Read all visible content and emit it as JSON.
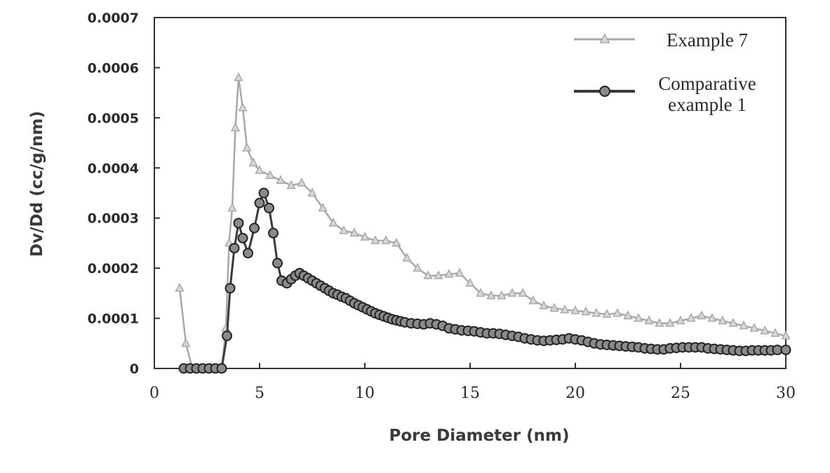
{
  "chart_data": {
    "type": "line",
    "xlabel": "Pore Diameter (nm)",
    "ylabel": "Dv/Dd (cc/g/nm)",
    "xlim": [
      0,
      30
    ],
    "ylim": [
      0,
      0.0007
    ],
    "x_ticks": [
      "0",
      "5",
      "10",
      "15",
      "20",
      "25",
      "30"
    ],
    "y_ticks": [
      "0",
      "0.0001",
      "0.0002",
      "0.0003",
      "0.0004",
      "0.0005",
      "0.0006",
      "0.0007"
    ],
    "grid": false,
    "legend_position": "top-right",
    "series": [
      {
        "name": "Example 7",
        "marker": "triangle",
        "color": "#a8a8a8",
        "points": [
          [
            1.2,
            0.00016
          ],
          [
            1.5,
            5e-05
          ],
          [
            1.8,
            0.0
          ],
          [
            2.2,
            0.0
          ],
          [
            2.7,
            0.0
          ],
          [
            3.2,
            0.0
          ],
          [
            3.4,
            8e-05
          ],
          [
            3.55,
            0.00025
          ],
          [
            3.7,
            0.00032
          ],
          [
            3.85,
            0.00048
          ],
          [
            4.0,
            0.00058
          ],
          [
            4.2,
            0.00052
          ],
          [
            4.4,
            0.00044
          ],
          [
            4.7,
            0.00041
          ],
          [
            5.0,
            0.000395
          ],
          [
            5.5,
            0.000385
          ],
          [
            6.0,
            0.000375
          ],
          [
            6.5,
            0.000365
          ],
          [
            7.0,
            0.00037
          ],
          [
            7.5,
            0.00035
          ],
          [
            8.0,
            0.00032
          ],
          [
            8.5,
            0.00029
          ],
          [
            9.0,
            0.000275
          ],
          [
            9.5,
            0.00027
          ],
          [
            10.0,
            0.000262
          ],
          [
            10.5,
            0.000255
          ],
          [
            11.0,
            0.000255
          ],
          [
            11.5,
            0.00025
          ],
          [
            12.0,
            0.00022
          ],
          [
            12.5,
            0.0002
          ],
          [
            13.0,
            0.000185
          ],
          [
            13.5,
            0.000185
          ],
          [
            14.0,
            0.000188
          ],
          [
            14.5,
            0.00019
          ],
          [
            15.0,
            0.00017
          ],
          [
            15.5,
            0.00015
          ],
          [
            16.0,
            0.000145
          ],
          [
            16.5,
            0.000145
          ],
          [
            17.0,
            0.00015
          ],
          [
            17.5,
            0.00015
          ],
          [
            18.0,
            0.000135
          ],
          [
            18.5,
            0.000125
          ],
          [
            19.0,
            0.00012
          ],
          [
            19.5,
            0.000117
          ],
          [
            20.0,
            0.000115
          ],
          [
            20.5,
            0.000113
          ],
          [
            21.0,
            0.00011
          ],
          [
            21.5,
            0.000108
          ],
          [
            22.0,
            0.00011
          ],
          [
            22.5,
            0.000105
          ],
          [
            23.0,
            0.0001
          ],
          [
            23.5,
            9.5e-05
          ],
          [
            24.0,
            9e-05
          ],
          [
            24.5,
            9e-05
          ],
          [
            25.0,
            9.5e-05
          ],
          [
            25.5,
            0.0001
          ],
          [
            26.0,
            0.000105
          ],
          [
            26.5,
            0.0001
          ],
          [
            27.0,
            9.5e-05
          ],
          [
            27.5,
            9e-05
          ],
          [
            28.0,
            8.5e-05
          ],
          [
            28.5,
            8e-05
          ],
          [
            29.0,
            7.5e-05
          ],
          [
            29.5,
            7e-05
          ],
          [
            30.0,
            6.5e-05
          ]
        ]
      },
      {
        "name": "Comparative\nexample 1",
        "marker": "circle",
        "color": "#3a3a3a",
        "points": [
          [
            1.4,
            0.0
          ],
          [
            1.7,
            0.0
          ],
          [
            2.0,
            0.0
          ],
          [
            2.3,
            0.0
          ],
          [
            2.6,
            0.0
          ],
          [
            2.9,
            0.0
          ],
          [
            3.2,
            0.0
          ],
          [
            3.45,
            6.5e-05
          ],
          [
            3.6,
            0.00016
          ],
          [
            3.8,
            0.00024
          ],
          [
            4.0,
            0.00029
          ],
          [
            4.2,
            0.00026
          ],
          [
            4.45,
            0.00023
          ],
          [
            4.75,
            0.00028
          ],
          [
            5.0,
            0.00033
          ],
          [
            5.2,
            0.00035
          ],
          [
            5.45,
            0.00032
          ],
          [
            5.65,
            0.00027
          ],
          [
            5.85,
            0.00021
          ],
          [
            6.05,
            0.000175
          ],
          [
            6.3,
            0.00017
          ],
          [
            6.5,
            0.000178
          ],
          [
            6.7,
            0.000185
          ],
          [
            6.9,
            0.00019
          ],
          [
            7.1,
            0.000185
          ],
          [
            7.3,
            0.00018
          ],
          [
            7.5,
            0.000175
          ],
          [
            7.7,
            0.00017
          ],
          [
            7.9,
            0.000165
          ],
          [
            8.1,
            0.00016
          ],
          [
            8.3,
            0.000155
          ],
          [
            8.5,
            0.00015
          ],
          [
            8.7,
            0.000147
          ],
          [
            8.9,
            0.000143
          ],
          [
            9.1,
            0.00014
          ],
          [
            9.3,
            0.000135
          ],
          [
            9.5,
            0.00013
          ],
          [
            9.7,
            0.000126
          ],
          [
            9.9,
            0.000122
          ],
          [
            10.1,
            0.000118
          ],
          [
            10.3,
            0.000114
          ],
          [
            10.5,
            0.00011
          ],
          [
            10.7,
            0.000107
          ],
          [
            10.9,
            0.000104
          ],
          [
            11.1,
            0.000101
          ],
          [
            11.3,
            9.8e-05
          ],
          [
            11.5,
            9.6e-05
          ],
          [
            11.7,
            9.4e-05
          ],
          [
            11.9,
            9.2e-05
          ],
          [
            12.2,
            9e-05
          ],
          [
            12.5,
            8.9e-05
          ],
          [
            12.8,
            8.8e-05
          ],
          [
            13.1,
            9e-05
          ],
          [
            13.4,
            8.8e-05
          ],
          [
            13.7,
            8.5e-05
          ],
          [
            14.0,
            8e-05
          ],
          [
            14.3,
            7.8e-05
          ],
          [
            14.6,
            7.6e-05
          ],
          [
            14.9,
            7.5e-05
          ],
          [
            15.2,
            7.4e-05
          ],
          [
            15.5,
            7.2e-05
          ],
          [
            15.8,
            7e-05
          ],
          [
            16.1,
            7e-05
          ],
          [
            16.4,
            6.9e-05
          ],
          [
            16.7,
            6.7e-05
          ],
          [
            17.0,
            6.5e-05
          ],
          [
            17.3,
            6.3e-05
          ],
          [
            17.6,
            6e-05
          ],
          [
            17.9,
            5.8e-05
          ],
          [
            18.2,
            5.6e-05
          ],
          [
            18.5,
            5.5e-05
          ],
          [
            18.8,
            5.6e-05
          ],
          [
            19.1,
            5.7e-05
          ],
          [
            19.4,
            5.8e-05
          ],
          [
            19.7,
            6e-05
          ],
          [
            20.0,
            5.8e-05
          ],
          [
            20.3,
            5.6e-05
          ],
          [
            20.6,
            5.3e-05
          ],
          [
            20.9,
            5e-05
          ],
          [
            21.2,
            4.8e-05
          ],
          [
            21.5,
            4.7e-05
          ],
          [
            21.8,
            4.6e-05
          ],
          [
            22.1,
            4.5e-05
          ],
          [
            22.4,
            4.4e-05
          ],
          [
            22.7,
            4.3e-05
          ],
          [
            23.0,
            4.2e-05
          ],
          [
            23.3,
            4e-05
          ],
          [
            23.6,
            3.9e-05
          ],
          [
            23.9,
            3.8e-05
          ],
          [
            24.2,
            3.8e-05
          ],
          [
            24.5,
            4e-05
          ],
          [
            24.8,
            4.1e-05
          ],
          [
            25.1,
            4.2e-05
          ],
          [
            25.4,
            4.2e-05
          ],
          [
            25.7,
            4.2e-05
          ],
          [
            26.0,
            4.2e-05
          ],
          [
            26.3,
            4e-05
          ],
          [
            26.6,
            3.9e-05
          ],
          [
            26.9,
            3.8e-05
          ],
          [
            27.2,
            3.7e-05
          ],
          [
            27.5,
            3.6e-05
          ],
          [
            27.8,
            3.5e-05
          ],
          [
            28.1,
            3.5e-05
          ],
          [
            28.4,
            3.6e-05
          ],
          [
            28.7,
            3.6e-05
          ],
          [
            29.0,
            3.6e-05
          ],
          [
            29.3,
            3.6e-05
          ],
          [
            29.6,
            3.7e-05
          ],
          [
            30.0,
            3.7e-05
          ]
        ]
      }
    ]
  }
}
